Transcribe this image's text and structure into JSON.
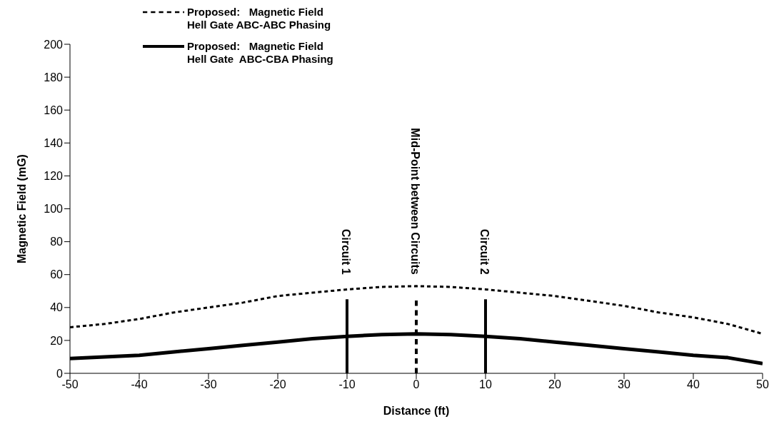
{
  "chart_data": {
    "type": "line",
    "xlabel": "Distance   (ft)",
    "ylabel": "Magnetic Field  (mG)",
    "x": [
      -50,
      -45,
      -40,
      -35,
      -30,
      -25,
      -20,
      -15,
      -10,
      -5,
      0,
      5,
      10,
      15,
      20,
      25,
      30,
      35,
      40,
      45,
      50
    ],
    "series": [
      {
        "name": "Proposed:   Magnetic Field\nHell Gate ABC-ABC Phasing",
        "color": "#000000",
        "line_style": "dashed",
        "values": [
          28,
          30,
          33,
          37,
          40,
          43,
          47,
          49,
          51,
          52.5,
          53,
          52.5,
          51,
          49,
          47,
          44,
          41,
          37,
          34,
          30,
          24
        ]
      },
      {
        "name": "Proposed:   Magnetic Field\nHell Gate  ABC-CBA Phasing",
        "color": "#000000",
        "line_style": "solid",
        "values": [
          9,
          10,
          11,
          13,
          15,
          17,
          19,
          21,
          22.5,
          23.5,
          24,
          23.5,
          22.5,
          21,
          19,
          17,
          15,
          13,
          11,
          9.5,
          6
        ]
      }
    ],
    "xlim": [
      -50,
      50
    ],
    "xticks": [
      -50,
      -40,
      -30,
      -20,
      -10,
      0,
      10,
      20,
      30,
      40,
      50
    ],
    "ylim": [
      0,
      200
    ],
    "yticks": [
      0,
      20,
      40,
      60,
      80,
      100,
      120,
      140,
      160,
      180,
      200
    ],
    "grid": false,
    "legend": "top left",
    "marker": "none",
    "ref_lines": [
      {
        "axis": "x",
        "value": -10,
        "label": "Circuit 1",
        "line_style": "solid",
        "color": "#000000"
      },
      {
        "axis": "x",
        "value": 0,
        "label": "Mid-Point between Circuits",
        "line_style": "dashed",
        "color": "#000000"
      },
      {
        "axis": "x",
        "value": 10,
        "label": "Circuit 2",
        "line_style": "solid",
        "color": "#000000"
      }
    ]
  }
}
